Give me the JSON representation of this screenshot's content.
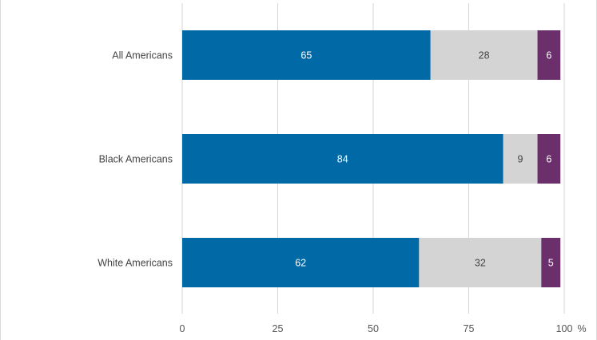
{
  "chart_data": {
    "type": "bar",
    "orientation": "horizontal",
    "stacked": true,
    "categories": [
      "All Americans",
      "Black Americans",
      "White Americans"
    ],
    "series": [
      {
        "values": [
          65,
          84,
          62
        ],
        "color": "#0069a6",
        "label_color": "#ffffff"
      },
      {
        "values": [
          28,
          9,
          32
        ],
        "color": "#d4d4d4",
        "label_color": "#444444"
      },
      {
        "values": [
          6,
          6,
          5
        ],
        "color": "#6b2f6b",
        "label_color": "#ffffff"
      }
    ],
    "x_ticks": [
      0,
      25,
      50,
      75,
      100
    ],
    "x_unit": "%",
    "xlim": [
      0,
      100
    ],
    "grid": "vertical",
    "legend": "none"
  }
}
